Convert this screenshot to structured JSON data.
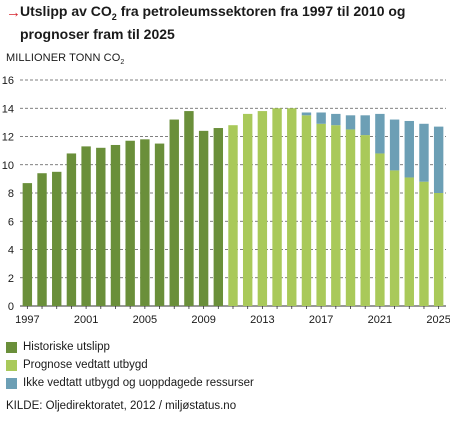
{
  "title": {
    "arrow": "→",
    "before_sub": "Utslipp av CO",
    "sub": "2",
    "after_sub": " fra petroleumssektoren fra 1997 til 2010 og prognoser fram til 2025"
  },
  "colors": {
    "arrow": "#d7262f",
    "historic": "#6a8f3a",
    "prognosis": "#a9c95a",
    "extra": "#6c9fb5",
    "grid": "#555555"
  },
  "legend": [
    {
      "label": "Historiske utslipp",
      "color_key": "historic"
    },
    {
      "label": "Prognose vedtatt utbygd",
      "color_key": "prognosis"
    },
    {
      "label": "Ikke vedtatt utbygd og uoppdagede ressurser",
      "color_key": "extra"
    }
  ],
  "source": "KILDE: Oljedirektoratet, 2012 / miljøstatus.no",
  "chart_data": {
    "type": "bar",
    "stacked": true,
    "title": "Utslipp av CO2 fra petroleumssektoren fra 1997 til 2010 og prognoser fram til 2025",
    "ylabel": {
      "before_sub": "MILLIONER TONN CO",
      "sub": "2"
    },
    "ylim": [
      0,
      16
    ],
    "yticks": [
      0,
      2,
      4,
      6,
      8,
      10,
      12,
      14,
      16
    ],
    "grid": "dashed horizontal",
    "categories": [
      1997,
      1998,
      1999,
      2000,
      2001,
      2002,
      2003,
      2004,
      2005,
      2006,
      2007,
      2008,
      2009,
      2010,
      2011,
      2012,
      2013,
      2014,
      2015,
      2016,
      2017,
      2018,
      2019,
      2020,
      2021,
      2022,
      2023,
      2024,
      2025
    ],
    "xtick_labels": [
      "1997",
      "2001",
      "2005",
      "2009",
      "2013",
      "2017",
      "2021",
      "2025"
    ],
    "series": [
      {
        "name": "Historiske utslipp",
        "color_key": "historic",
        "values": [
          8.7,
          9.4,
          9.5,
          10.8,
          11.3,
          11.2,
          11.4,
          11.7,
          11.8,
          11.5,
          13.2,
          13.8,
          12.4,
          12.6,
          0,
          0,
          0,
          0,
          0,
          0,
          0,
          0,
          0,
          0,
          0,
          0,
          0,
          0,
          0
        ]
      },
      {
        "name": "Prognose vedtatt utbygd",
        "color_key": "prognosis",
        "values": [
          0,
          0,
          0,
          0,
          0,
          0,
          0,
          0,
          0,
          0,
          0,
          0,
          0,
          0,
          12.8,
          13.6,
          13.8,
          14.0,
          14.0,
          13.5,
          12.9,
          12.8,
          12.5,
          12.1,
          10.8,
          9.6,
          9.1,
          8.8,
          8.0
        ]
      },
      {
        "name": "Ikke vedtatt utbygd og uoppdagede ressurser",
        "color_key": "extra",
        "values": [
          0,
          0,
          0,
          0,
          0,
          0,
          0,
          0,
          0,
          0,
          0,
          0,
          0,
          0,
          0,
          0,
          0,
          0,
          0,
          0.2,
          0.8,
          0.8,
          1.0,
          1.4,
          2.8,
          3.6,
          4.0,
          4.1,
          4.7
        ]
      }
    ]
  }
}
